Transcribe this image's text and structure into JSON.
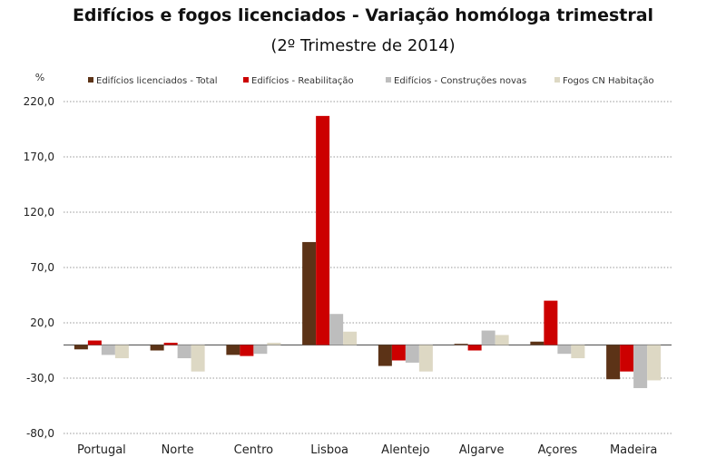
{
  "chart_data": {
    "type": "bar",
    "title": "Edifícios e fogos licenciados - Variação homóloga trimestral",
    "subtitle": "(2º Trimestre de 2014)",
    "ylabel": "%",
    "ylim": [
      -80,
      220
    ],
    "yticks": [
      "220,0",
      "170,0",
      "120,0",
      "70,0",
      "20,0",
      "-30,0",
      "-80,0"
    ],
    "ytick_values": [
      220,
      170,
      120,
      70,
      20,
      -30,
      -80
    ],
    "grid": true,
    "legend_position": "top",
    "categories": [
      "Portugal",
      "Norte",
      "Centro",
      "Lisboa",
      "Alentejo",
      "Algarve",
      "Açores",
      "Madeira"
    ],
    "series": [
      {
        "name": "Edifícios licenciados - Total",
        "color": "#5c3317",
        "values": [
          -4,
          -5,
          -9,
          93,
          -19,
          1,
          3,
          -31
        ]
      },
      {
        "name": "Edifícios - Reabilitação",
        "color": "#cc0000",
        "values": [
          4,
          2,
          -10,
          207,
          -14,
          -5,
          40,
          -24
        ]
      },
      {
        "name": "Edifícios - Construções novas",
        "color": "#bdbdbd",
        "values": [
          -9,
          -12,
          -8,
          28,
          -16,
          13,
          -8,
          -39
        ]
      },
      {
        "name": "Fogos CN Habitação",
        "color": "#ddd8c4",
        "values": [
          -12,
          -24,
          2,
          12,
          -24,
          9,
          -12,
          -32
        ]
      }
    ]
  }
}
